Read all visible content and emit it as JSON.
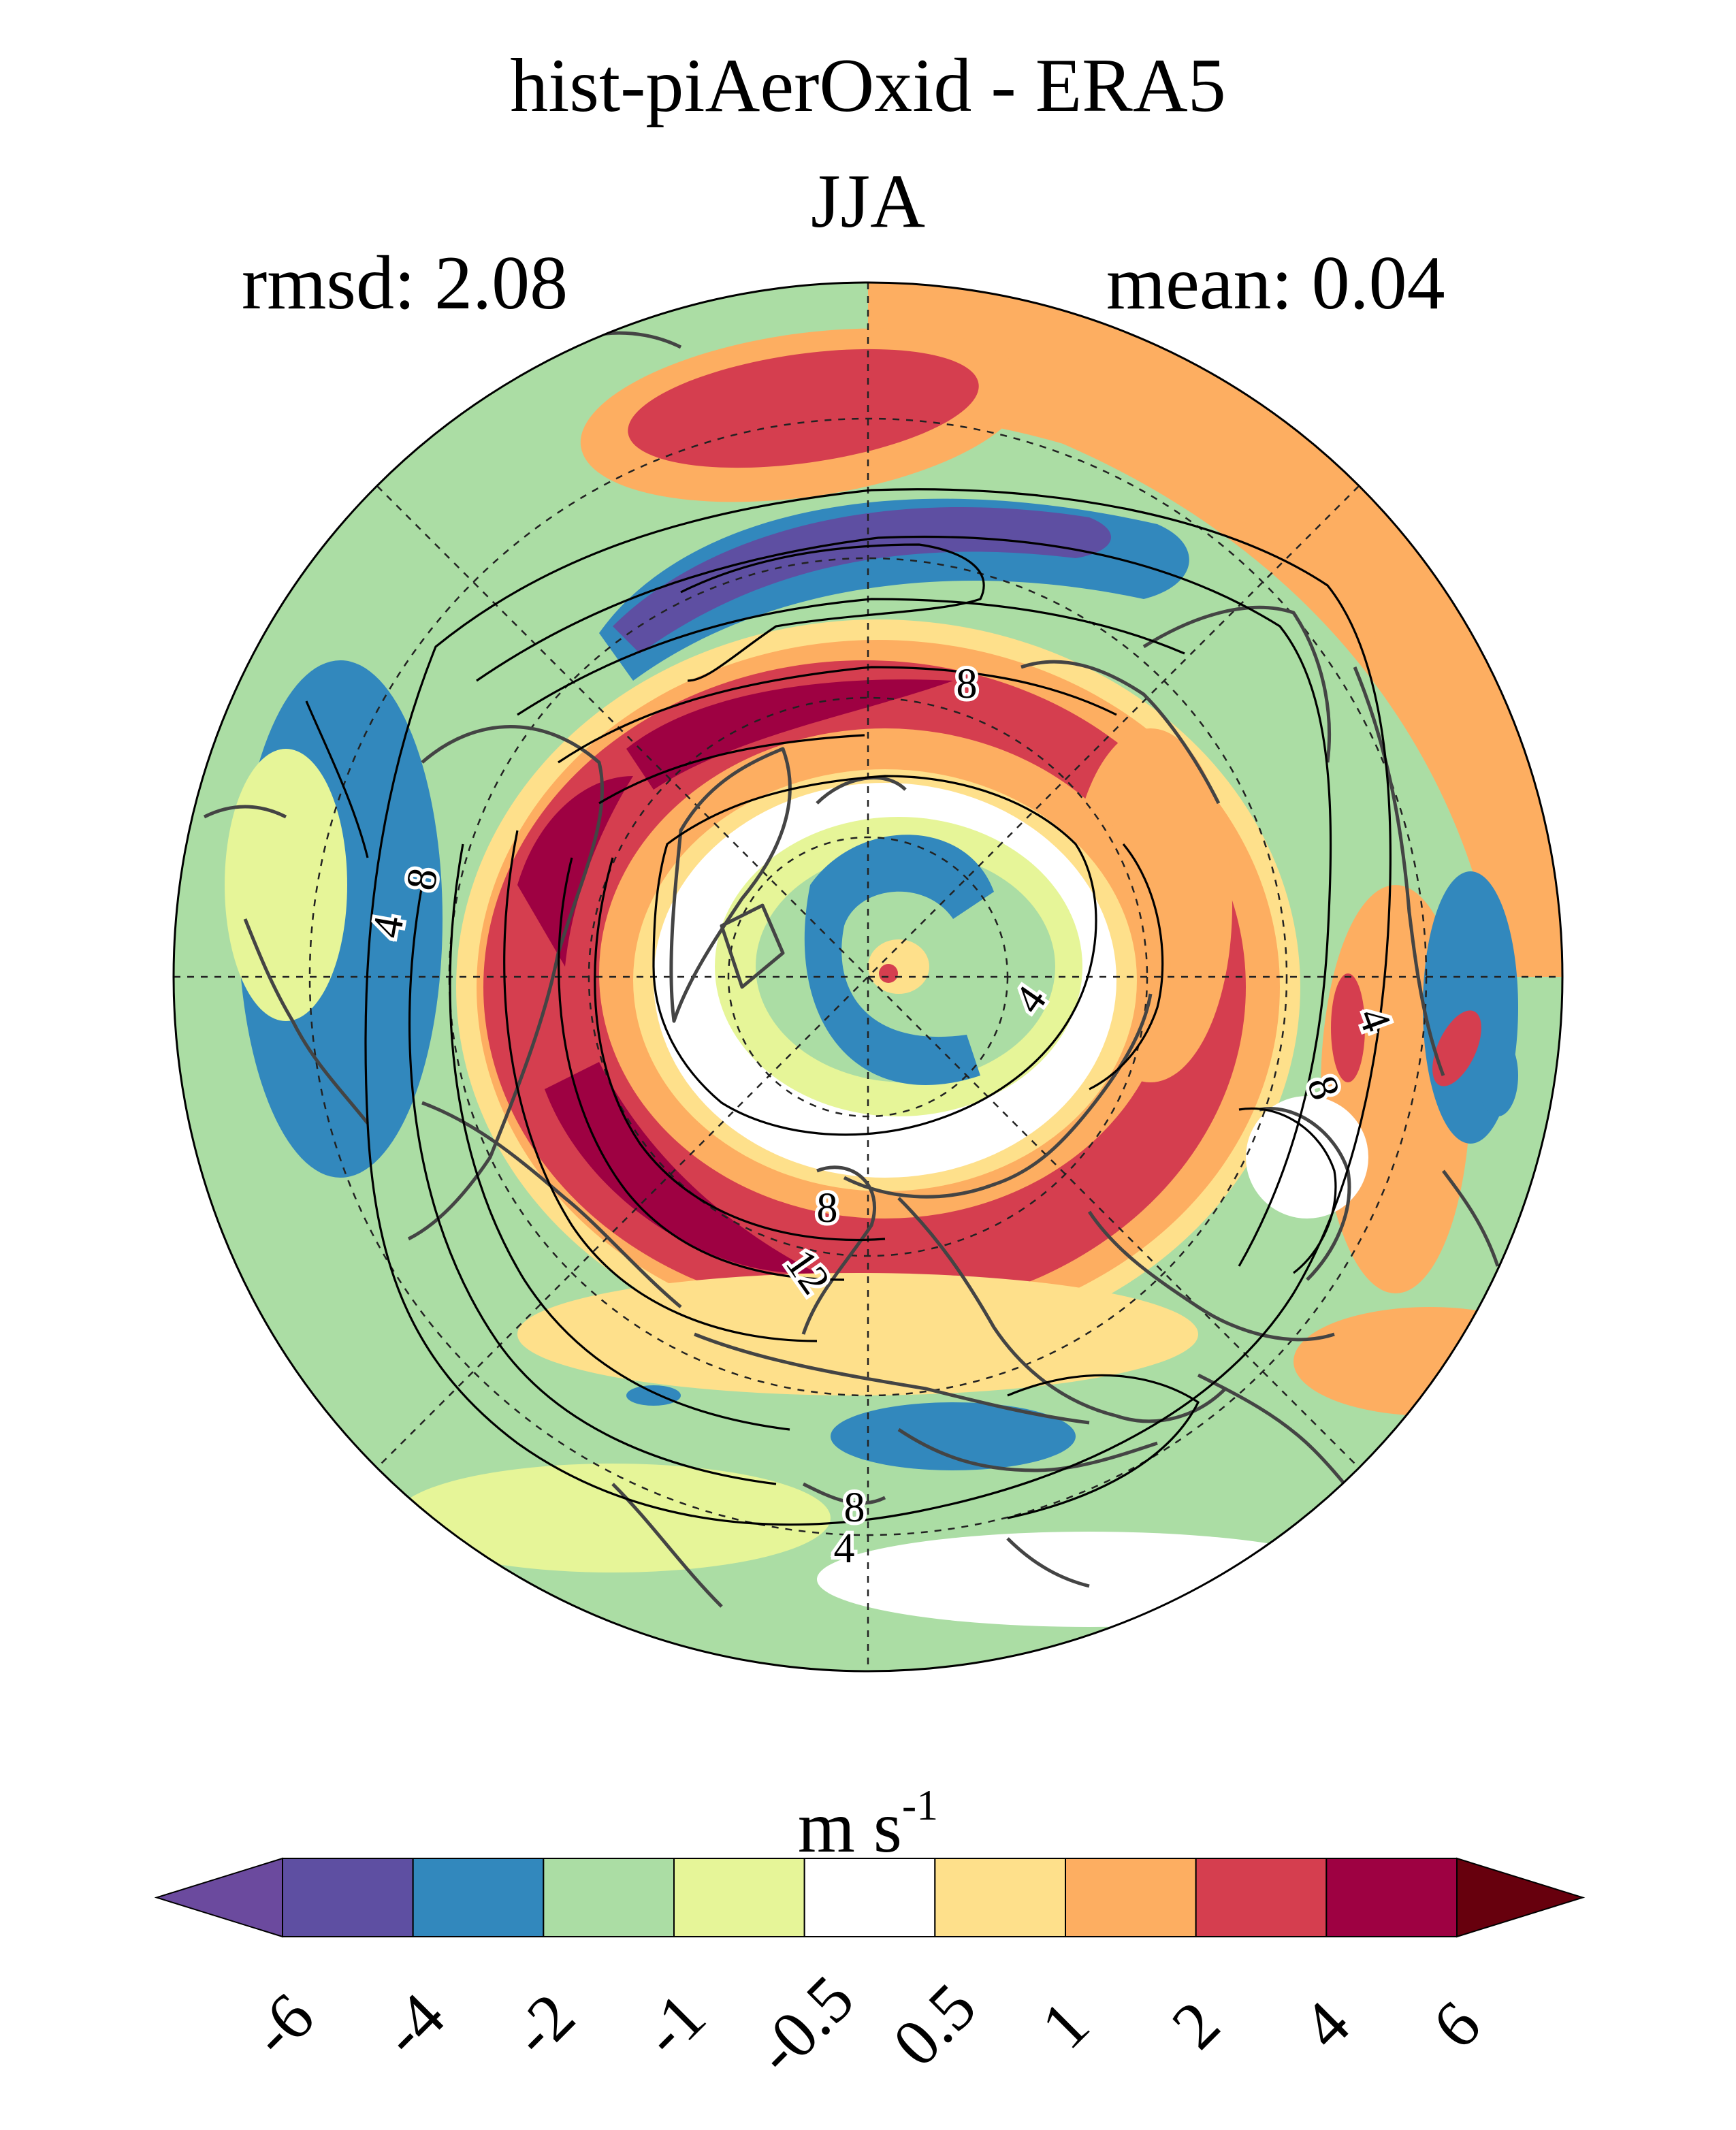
{
  "title": "hist-piAerOxid - ERA5",
  "subtitle": "JJA",
  "stats": {
    "rmsd_label": "rmsd: 2.08",
    "mean_label": "mean: 0.04"
  },
  "colorbar": {
    "unit_base": "m s",
    "unit_exp": "-1",
    "levels": [
      "-6",
      "-4",
      "-2",
      "-1",
      "-0.5",
      "0.5",
      "1",
      "2",
      "4",
      "6"
    ],
    "colors": [
      "#5e4fa2",
      "#3288bd",
      "#abdda4",
      "#e6f598",
      "#ffffff",
      "#fee08b",
      "#fdae61",
      "#d53e4f",
      "#9e0142"
    ],
    "under_color": "#6b4a9e",
    "over_color": "#67000d"
  },
  "contour_labels": [
    "8",
    "8",
    "4",
    "8",
    "4",
    "4",
    "8",
    "8",
    "12",
    "8",
    "4"
  ]
}
